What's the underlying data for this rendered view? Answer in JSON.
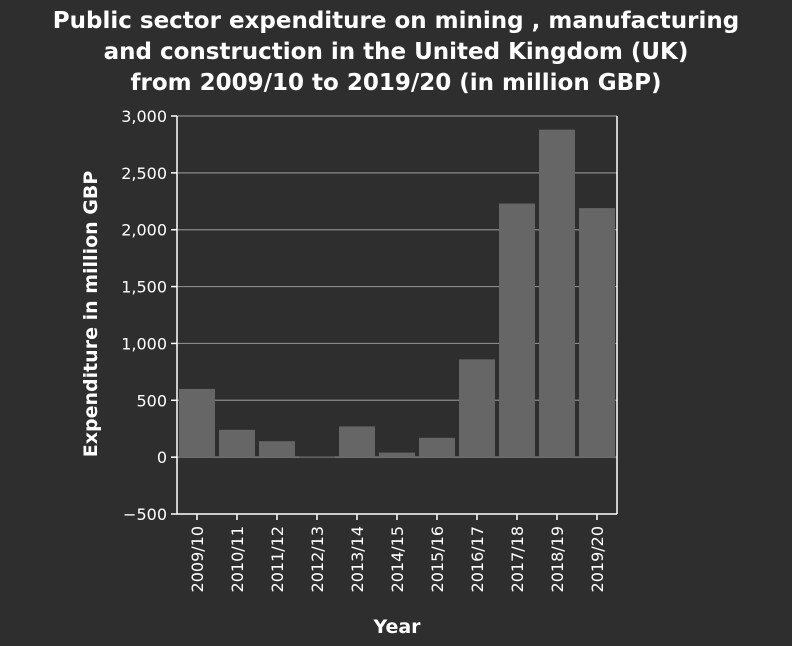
{
  "chart_data": {
    "type": "bar",
    "title_lines": [
      "Public sector expenditure on mining , manufacturing",
      "and construction in the United Kingdom (UK)",
      "from 2009/10 to 2019/20 (in million GBP)"
    ],
    "xlabel": "Year",
    "ylabel": "Expenditure in million GBP",
    "categories": [
      "2009/10",
      "2010/11",
      "2011/12",
      "2012/13",
      "2013/14",
      "2014/15",
      "2015/16",
      "2016/17",
      "2017/18",
      "2018/19",
      "2019/20"
    ],
    "values": [
      600,
      240,
      140,
      5,
      270,
      40,
      170,
      860,
      2230,
      2880,
      2190
    ],
    "ylim": [
      -500,
      3000
    ],
    "yticks": [
      -500,
      0,
      500,
      1000,
      1500,
      2000,
      2500,
      3000
    ],
    "ytick_labels": [
      "−500",
      "0",
      "500",
      "1,000",
      "1,500",
      "2,000",
      "2,500",
      "3,000"
    ],
    "grid": "horizontal",
    "colors": {
      "background": "#2e2e2e",
      "bar": "#666666",
      "grid": "#8a8a8a",
      "axis": "#ffffff",
      "text": "#ffffff"
    }
  }
}
